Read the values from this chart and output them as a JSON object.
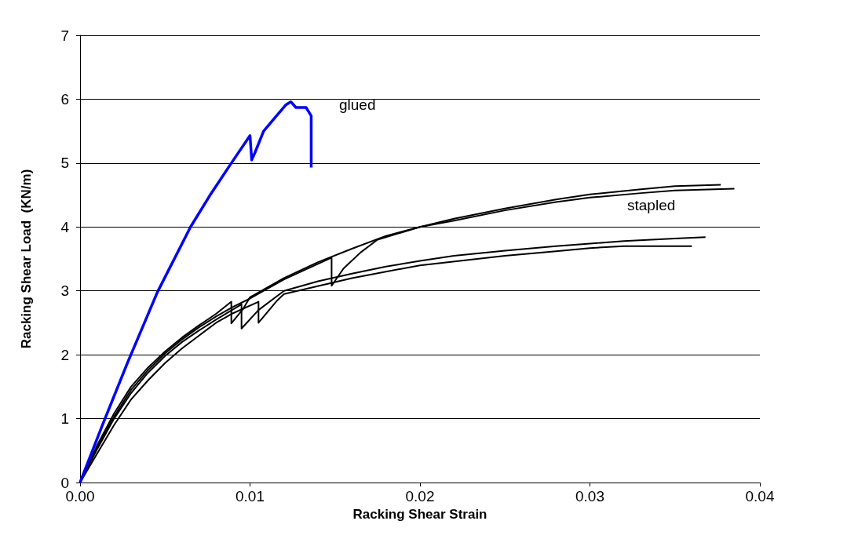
{
  "chart_data": {
    "type": "line",
    "xlabel": "Racking Shear Strain",
    "ylabel": "Racking Shear Load  (KN/m)",
    "xlim": [
      0,
      0.04
    ],
    "xticks": [
      {
        "value": 0,
        "label": "0.00"
      },
      {
        "value": 0.01,
        "label": "0.01"
      },
      {
        "value": 0.02,
        "label": "0.02"
      },
      {
        "value": 0.03,
        "label": "0.03"
      },
      {
        "value": 0.04,
        "label": "0.04"
      }
    ],
    "ylim": [
      0,
      7
    ],
    "yticks": [
      0,
      1,
      2,
      3,
      4,
      5,
      6,
      7
    ],
    "grid": "y",
    "marker": "none",
    "line_style": "solid",
    "series": [
      {
        "color": "#0000ff",
        "x": [
          0,
          0.0013,
          0.0028,
          0.00455,
          0.0065,
          0.0077,
          0.0089,
          0.01,
          0.0101,
          0.0103,
          0.0108,
          0.0115,
          0.0121,
          0.0124,
          0.0127,
          0.0133,
          0.0136,
          0.0136
        ],
        "values": [
          0,
          0.89,
          1.88,
          2.98,
          4.0,
          4.52,
          5.0,
          5.43,
          5.05,
          5.17,
          5.5,
          5.72,
          5.91,
          5.96,
          5.87,
          5.87,
          5.74,
          4.93
        ]
      },
      {
        "color": "#000000",
        "x": [
          0,
          0.001,
          0.002,
          0.003,
          0.004,
          0.005,
          0.006,
          0.007,
          0.008,
          0.0089,
          0.0089,
          0.0096,
          0.01,
          0.012,
          0.014,
          0.016,
          0.018,
          0.02,
          0.022,
          0.025,
          0.028,
          0.03,
          0.033,
          0.035,
          0.0377
        ],
        "values": [
          0,
          0.58,
          1.08,
          1.5,
          1.8,
          2.05,
          2.27,
          2.46,
          2.64,
          2.83,
          2.49,
          2.72,
          2.9,
          3.2,
          3.45,
          3.66,
          3.86,
          4.0,
          4.13,
          4.29,
          4.43,
          4.51,
          4.59,
          4.64,
          4.66
        ]
      },
      {
        "color": "#000000",
        "x": [
          0,
          0.001,
          0.002,
          0.003,
          0.004,
          0.005,
          0.006,
          0.007,
          0.008,
          0.009,
          0.01,
          0.012,
          0.0148,
          0.0148,
          0.0155,
          0.0165,
          0.0175,
          0.02,
          0.022,
          0.025,
          0.028,
          0.03,
          0.033,
          0.035,
          0.0385
        ],
        "values": [
          0,
          0.55,
          1.03,
          1.45,
          1.76,
          2.02,
          2.24,
          2.43,
          2.6,
          2.75,
          2.88,
          3.18,
          3.52,
          3.08,
          3.35,
          3.6,
          3.8,
          4.0,
          4.1,
          4.26,
          4.39,
          4.46,
          4.53,
          4.57,
          4.6
        ]
      },
      {
        "color": "#000000",
        "x": [
          0,
          0.001,
          0.002,
          0.003,
          0.004,
          0.005,
          0.006,
          0.007,
          0.008,
          0.0095,
          0.0095,
          0.0105,
          0.012,
          0.014,
          0.016,
          0.018,
          0.02,
          0.022,
          0.025,
          0.028,
          0.03,
          0.032,
          0.035,
          0.0368
        ],
        "values": [
          0,
          0.52,
          1.0,
          1.4,
          1.72,
          1.98,
          2.2,
          2.38,
          2.55,
          2.79,
          2.41,
          2.7,
          3.0,
          3.15,
          3.27,
          3.38,
          3.47,
          3.55,
          3.63,
          3.7,
          3.74,
          3.78,
          3.82,
          3.84
        ]
      },
      {
        "color": "#000000",
        "x": [
          0,
          0.001,
          0.002,
          0.003,
          0.004,
          0.005,
          0.006,
          0.007,
          0.008,
          0.009,
          0.0105,
          0.0105,
          0.0116,
          0.012,
          0.016,
          0.02,
          0.025,
          0.028,
          0.03,
          0.032,
          0.036
        ],
        "values": [
          0,
          0.45,
          0.9,
          1.3,
          1.6,
          1.87,
          2.1,
          2.3,
          2.5,
          2.65,
          2.83,
          2.5,
          2.85,
          2.95,
          3.2,
          3.4,
          3.55,
          3.62,
          3.67,
          3.7,
          3.7
        ]
      }
    ],
    "annotations": [
      "glued",
      "stapled"
    ]
  }
}
